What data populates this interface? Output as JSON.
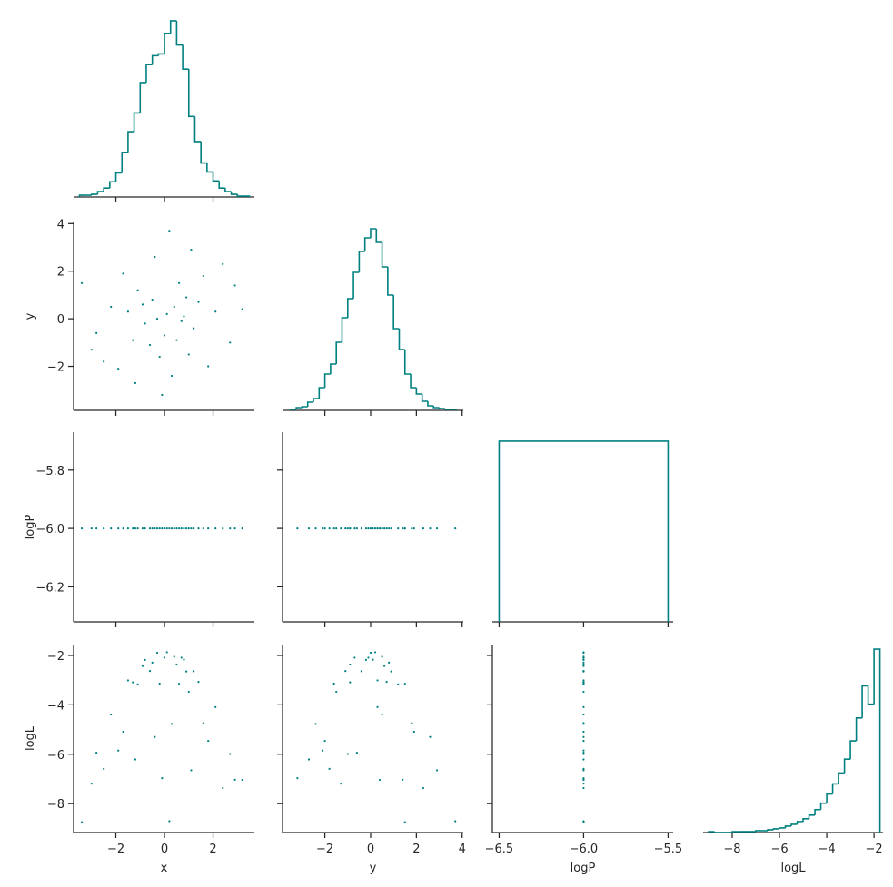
{
  "chart_data": {
    "type": "pairplot",
    "color": "#008080",
    "variables": [
      {
        "label": "x",
        "lim": [
          -3.74,
          3.7
        ],
        "ticks": [
          {
            "value": -2,
            "label": "−2"
          },
          0,
          2
        ],
        "samples": [
          0.1,
          -0.5,
          1.2,
          -1.3,
          0.6,
          -0.2,
          2.1,
          -2.2,
          0.9,
          -0.8,
          1.6,
          -1.7,
          0.3,
          -0.4,
          2.7,
          -2.8,
          1.0,
          -1.1,
          0.0,
          0.4,
          -0.3,
          1.8,
          -1.9,
          3.2,
          -3.4,
          0.2,
          -0.1,
          2.4,
          -2.5,
          0.7,
          -0.6,
          1.4,
          -1.5,
          0.5,
          -0.9,
          2.9,
          -3.0,
          1.1,
          -1.2,
          0.8
        ],
        "hist": {
          "bins": [
            -3.5,
            -3.25,
            -3.0,
            -2.75,
            -2.5,
            -2.25,
            -2.0,
            -1.75,
            -1.5,
            -1.25,
            -1.0,
            -0.75,
            -0.5,
            -0.25,
            0.0,
            0.25,
            0.5,
            0.75,
            1.0,
            1.25,
            1.5,
            1.75,
            2.0,
            2.25,
            2.5,
            2.75,
            3.0,
            3.25,
            3.5
          ],
          "values": [
            2,
            2,
            3,
            6,
            10,
            17,
            27,
            50,
            73,
            94,
            128,
            148,
            158,
            160,
            183,
            197,
            170,
            143,
            90,
            62,
            38,
            28,
            18,
            10,
            6,
            3,
            1,
            1
          ],
          "ylim": [
            0,
            200
          ]
        }
      },
      {
        "label": "y",
        "lim": [
          -3.85,
          4.05
        ],
        "ticks": [
          {
            "value": -2,
            "label": "−2"
          },
          0,
          2,
          4
        ],
        "samples": [
          0.2,
          0.8,
          -0.4,
          -0.9,
          1.5,
          -1.6,
          0.3,
          0.5,
          0.9,
          -0.2,
          1.8,
          1.9,
          -2.4,
          2.6,
          -1.0,
          -0.6,
          -1.5,
          1.2,
          -0.7,
          0.5,
          0.0,
          -2.0,
          -2.1,
          0.4,
          1.5,
          3.7,
          -3.2,
          2.3,
          -1.8,
          -0.1,
          -1.1,
          0.7,
          0.3,
          -0.9,
          0.6,
          1.4,
          -1.3,
          2.9,
          -2.7,
          0.1
        ],
        "hist": {
          "bins": [
            -3.5,
            -3.25,
            -3.0,
            -2.75,
            -2.5,
            -2.25,
            -2.0,
            -1.75,
            -1.5,
            -1.25,
            -1.0,
            -0.75,
            -0.5,
            -0.25,
            0.0,
            0.25,
            0.5,
            0.75,
            1.0,
            1.25,
            1.5,
            1.75,
            2.0,
            2.25,
            2.5,
            2.75,
            3.0,
            3.25,
            3.5,
            3.75
          ],
          "values": [
            1,
            3,
            4,
            9,
            13,
            25,
            40,
            51,
            75,
            102,
            123,
            152,
            175,
            190,
            200,
            185,
            158,
            127,
            90,
            67,
            40,
            25,
            18,
            10,
            5,
            3,
            2,
            1,
            1
          ],
          "ylim": [
            0,
            207
          ]
        }
      },
      {
        "label": "logP",
        "lim": [
          -6.54,
          -5.47
        ],
        "axlim": [
          -6.32,
          -5.67
        ],
        "ticks": [
          {
            "value": -6.5,
            "label": "−6.5"
          },
          {
            "value": -6.0,
            "label": "−6.0"
          },
          {
            "value": -5.5,
            "label": "−5.5"
          }
        ],
        "axticks": [
          {
            "value": -6.2,
            "label": "−6.2"
          },
          {
            "value": -6.0,
            "label": "−6.0"
          },
          {
            "value": -5.8,
            "label": "−5.8"
          }
        ],
        "samples": [
          -6.0,
          -6.0,
          -6.0,
          -6.0,
          -6.0,
          -6.0,
          -6.0,
          -6.0,
          -6.0,
          -6.0,
          -6.0,
          -6.0,
          -6.0,
          -6.0,
          -6.0,
          -6.0,
          -6.0,
          -6.0,
          -6.0,
          -6.0,
          -6.0,
          -6.0,
          -6.0,
          -6.0,
          -6.0,
          -6.0,
          -6.0,
          -6.0,
          -6.0,
          -6.0,
          -6.0,
          -6.0,
          -6.0,
          -6.0,
          -6.0,
          -6.0,
          -6.0,
          -6.0,
          -6.0,
          -6.0
        ],
        "hist": {
          "bins": [
            -6.5,
            -5.5
          ],
          "values": [
            1
          ],
          "ylim": [
            0,
            1.05
          ]
        }
      },
      {
        "label": "logL",
        "lim": [
          -9.23,
          -1.62
        ],
        "axlim": [
          -9.17,
          -1.56
        ],
        "ticks": [
          {
            "value": -8,
            "label": "−8"
          },
          {
            "value": -6,
            "label": "−6"
          },
          {
            "value": -4,
            "label": "−4"
          },
          {
            "value": -2,
            "label": "−2"
          }
        ],
        "samples": [
          -1.87,
          -2.29,
          -2.64,
          -3.09,
          -3.15,
          -3.14,
          -4.09,
          -4.39,
          -2.65,
          -2.18,
          -4.74,
          -5.09,
          -4.77,
          -5.3,
          -5.99,
          -5.94,
          -3.47,
          -3.17,
          -2.09,
          -2.05,
          -1.89,
          -5.46,
          -5.85,
          -7.04,
          -8.75,
          -8.71,
          -6.97,
          -7.37,
          -6.59,
          -2.09,
          -2.63,
          -3.07,
          -3.01,
          -2.37,
          -2.43,
          -7.03,
          -7.19,
          -6.65,
          -6.21,
          -2.17
        ],
        "hist": {
          "bins": [
            -9.0,
            -8.75,
            -8.5,
            -8.25,
            -8.0,
            -7.75,
            -7.5,
            -7.25,
            -7.0,
            -6.75,
            -6.5,
            -6.25,
            -6.0,
            -5.75,
            -5.5,
            -5.25,
            -5.0,
            -4.75,
            -4.5,
            -4.25,
            -4.0,
            -3.75,
            -3.5,
            -3.25,
            -3.0,
            -2.75,
            -2.5,
            -2.25,
            -2.0,
            -1.75
          ],
          "values": [
            1,
            0,
            0,
            0,
            1,
            1,
            1,
            1,
            2,
            2,
            3,
            4,
            5,
            7,
            9,
            12,
            15,
            19,
            25,
            32,
            42,
            53,
            65,
            80,
            100,
            125,
            160,
            140,
            200
          ],
          "ylim": [
            0,
            205
          ]
        }
      }
    ]
  }
}
